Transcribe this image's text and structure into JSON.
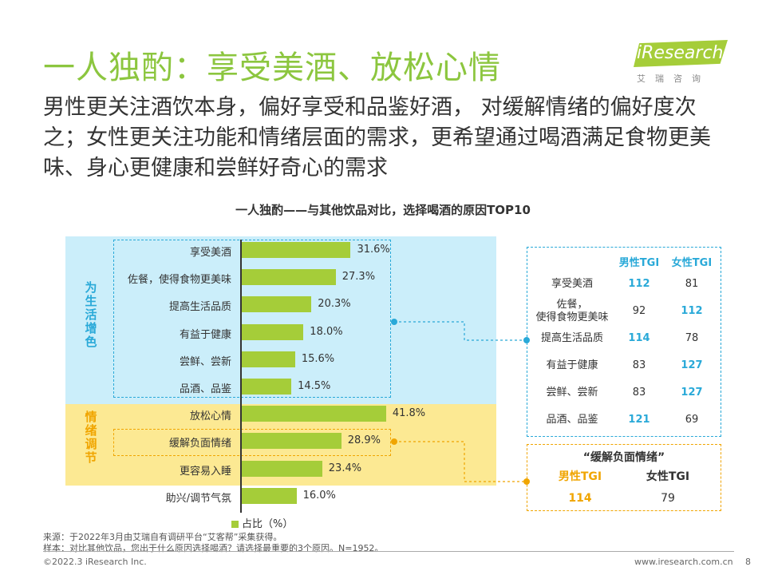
{
  "header": {
    "title": "一人独酌：享受美酒、放松心情",
    "subtitle": "男性更关注酒饮本身，偏好享受和品鉴好酒， 对缓解情绪的偏好度次之；女性更关注功能和情绪层面的需求，更希望通过喝酒满足食物更美味、身心更健康和尝鲜好奇心的需求",
    "logo_text": "iResearch",
    "logo_sub": "艾瑞咨询"
  },
  "chart_data": {
    "type": "bar",
    "orientation": "horizontal",
    "title": "一人独酌——与其他饮品对比，选择喝酒的原因TOP10",
    "legend": "占比（%）",
    "groups": [
      {
        "name": "为生活增色",
        "range": [
          0,
          5
        ]
      },
      {
        "name": "情绪调节",
        "range": [
          6,
          9
        ]
      }
    ],
    "categories": [
      "享受美酒",
      "佐餐，使得食物更美味",
      "提高生活品质",
      "有益于健康",
      "尝鲜、尝新",
      "品酒、品鉴",
      "放松心情",
      "缓解负面情绪",
      "更容易入睡",
      "助兴/调节气氛"
    ],
    "values": [
      31.6,
      27.3,
      20.3,
      18.0,
      15.6,
      14.5,
      41.8,
      28.9,
      23.4,
      16.0
    ],
    "value_labels": [
      "31.6%",
      "27.3%",
      "20.3%",
      "18.0%",
      "15.6%",
      "14.5%",
      "41.8%",
      "28.9%",
      "23.4%",
      "16.0%"
    ],
    "xlim": [
      0,
      45
    ]
  },
  "tgi_table": {
    "headers": [
      "男性TGI",
      "女性TGI"
    ],
    "rows": [
      {
        "label": "享受美酒",
        "male": "112",
        "female": "81",
        "hl": "male"
      },
      {
        "label": "佐餐，\n使得食物更美味",
        "male": "92",
        "female": "112",
        "hl": "female"
      },
      {
        "label": "提高生活品质",
        "male": "114",
        "female": "78",
        "hl": "male"
      },
      {
        "label": "有益于健康",
        "male": "83",
        "female": "127",
        "hl": "female"
      },
      {
        "label": "尝鲜、尝新",
        "male": "83",
        "female": "127",
        "hl": "female"
      },
      {
        "label": "品酒、品鉴",
        "male": "121",
        "female": "69",
        "hl": "male"
      }
    ]
  },
  "emotion_box": {
    "title": "“缓解负面情绪”",
    "male_label": "男性TGI",
    "female_label": "女性TGI",
    "male_value": "114",
    "female_value": "79"
  },
  "colors": {
    "bar": "#a5cd39",
    "blue_accent": "#29a9d8",
    "orange_accent": "#f0a500"
  },
  "footnotes": {
    "source": "来源：于2022年3月由艾瑞自有调研平台“艾客帮”采集获得。",
    "sample": "样本：对比其他饮品，您出于什么原因选择喝酒？请选择最重要的3个原因。N=1952。"
  },
  "footer": {
    "copyright": "©2022.3 iResearch Inc.",
    "website": "www.iresearch.com.cn",
    "page": "8"
  }
}
